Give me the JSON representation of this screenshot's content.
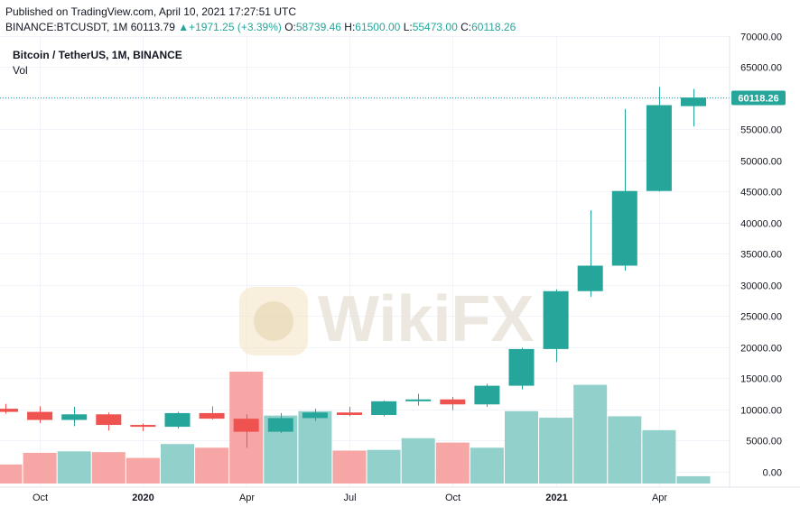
{
  "header": {
    "published": "Published on TradingView.com, April 10, 2021 17:27:51 UTC",
    "symbol_line": "BINANCE:BTCUSDT, 1M",
    "last": "60113.79",
    "change_arrow": "▲",
    "change": "+1971.25 (+3.39%)",
    "o_label": "O:",
    "o_value": "58739.46",
    "h_label": "H:",
    "h_value": "61500.00",
    "l_label": "L:",
    "l_value": "55473.00",
    "c_label": "C:",
    "c_value": "60118.26"
  },
  "legend": {
    "title": "Bitcoin / TetherUS, 1M, BINANCE",
    "vol": "Vol"
  },
  "watermark": {
    "text": "WikiFX"
  },
  "colors": {
    "up": "#26a69a",
    "down": "#ef5350",
    "vol_up": "#92d0cb",
    "vol_down": "#f5a6a5",
    "last_price": "#26a69a",
    "grid": "#f0f3fa"
  },
  "chart_data": {
    "type": "candlestick",
    "symbol": "BINANCE:BTCUSDT",
    "interval": "1M",
    "y_axis": {
      "range": [
        -2500,
        70000
      ],
      "ticks": [
        70000,
        65000,
        60000,
        55000,
        50000,
        45000,
        40000,
        35000,
        30000,
        25000,
        20000,
        15000,
        10000,
        5000,
        0
      ],
      "tick_labels": [
        "70000.00",
        "65000.00",
        "60000.00",
        "55000.00",
        "50000.00",
        "45000.00",
        "40000.00",
        "35000.00",
        "30000.00",
        "25000.00",
        "20000.00",
        "15000.00",
        "10000.00",
        "5000.00",
        "0.00"
      ]
    },
    "x_axis": {
      "tick_labels": [
        {
          "label": "Oct",
          "index": 1
        },
        {
          "label": "2020",
          "index": 4
        },
        {
          "label": "Apr",
          "index": 7
        },
        {
          "label": "Jul",
          "index": 10
        },
        {
          "label": "Oct",
          "index": 13
        },
        {
          "label": "2021",
          "index": 16
        },
        {
          "label": "Apr",
          "index": 19
        }
      ]
    },
    "last_price_label": "60118.26",
    "last_price": 60118.26,
    "candles": [
      {
        "month": "2019-08",
        "open": 10100,
        "high": 10900,
        "low": 9300,
        "close": 9600,
        "volume": 2600
      },
      {
        "month": "2019-09",
        "open": 9600,
        "high": 10500,
        "low": 7800,
        "close": 8300,
        "volume": 4200
      },
      {
        "month": "2019-10",
        "open": 8300,
        "high": 10400,
        "low": 7300,
        "close": 9200,
        "volume": 4400
      },
      {
        "month": "2019-11",
        "open": 9200,
        "high": 9500,
        "low": 6600,
        "close": 7500,
        "volume": 4300
      },
      {
        "month": "2019-12",
        "open": 7500,
        "high": 7700,
        "low": 6500,
        "close": 7200,
        "volume": 3500
      },
      {
        "month": "2020-01",
        "open": 7200,
        "high": 9600,
        "low": 6900,
        "close": 9400,
        "volume": 5400
      },
      {
        "month": "2020-02",
        "open": 9400,
        "high": 10500,
        "low": 8400,
        "close": 8500,
        "volume": 4900
      },
      {
        "month": "2020-03",
        "open": 8500,
        "high": 9200,
        "low": 3800,
        "close": 6400,
        "volume": 15300
      },
      {
        "month": "2020-04",
        "open": 6400,
        "high": 9400,
        "low": 6200,
        "close": 8600,
        "volume": 9300
      },
      {
        "month": "2020-05",
        "open": 8600,
        "high": 10100,
        "low": 8100,
        "close": 9500,
        "volume": 9900
      },
      {
        "month": "2020-06",
        "open": 9500,
        "high": 10400,
        "low": 8900,
        "close": 9100,
        "volume": 4500
      },
      {
        "month": "2020-07",
        "open": 9100,
        "high": 11400,
        "low": 8900,
        "close": 11300,
        "volume": 4600
      },
      {
        "month": "2020-08",
        "open": 11300,
        "high": 12500,
        "low": 10600,
        "close": 11600,
        "volume": 6200
      },
      {
        "month": "2020-09",
        "open": 11600,
        "high": 12000,
        "low": 9900,
        "close": 10800,
        "volume": 5600
      },
      {
        "month": "2020-10",
        "open": 10800,
        "high": 14100,
        "low": 10400,
        "close": 13800,
        "volume": 4900
      },
      {
        "month": "2020-11",
        "open": 13800,
        "high": 19900,
        "low": 13200,
        "close": 19700,
        "volume": 9900
      },
      {
        "month": "2020-12",
        "open": 19700,
        "high": 29300,
        "low": 17600,
        "close": 29000,
        "volume": 9000
      },
      {
        "month": "2021-01",
        "open": 29000,
        "high": 42000,
        "low": 28100,
        "close": 33100,
        "volume": 13500
      },
      {
        "month": "2021-02",
        "open": 33100,
        "high": 58300,
        "low": 32300,
        "close": 45100,
        "volume": 9200
      },
      {
        "month": "2021-03",
        "open": 45100,
        "high": 61800,
        "low": 45000,
        "close": 58900,
        "volume": 7300
      },
      {
        "month": "2021-04",
        "open": 58739.46,
        "high": 61500.0,
        "low": 55473.0,
        "close": 60118.26,
        "volume": 1000
      }
    ]
  }
}
